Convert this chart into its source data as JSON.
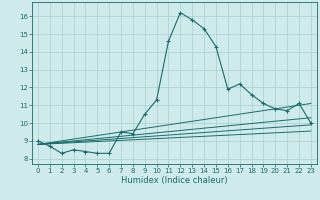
{
  "title": "",
  "xlabel": "Humidex (Indice chaleur)",
  "xlim": [
    -0.5,
    23.5
  ],
  "ylim": [
    7.7,
    16.8
  ],
  "yticks": [
    8,
    9,
    10,
    11,
    12,
    13,
    14,
    15,
    16
  ],
  "xticks": [
    0,
    1,
    2,
    3,
    4,
    5,
    6,
    7,
    8,
    9,
    10,
    11,
    12,
    13,
    14,
    15,
    16,
    17,
    18,
    19,
    20,
    21,
    22,
    23
  ],
  "bg_color": "#ceeaea",
  "grid_color": "#a8d0d0",
  "line_color": "#1a6b6b",
  "main_series": {
    "x": [
      0,
      1,
      2,
      3,
      4,
      5,
      6,
      7,
      8,
      9,
      10,
      11,
      12,
      13,
      14,
      15,
      16,
      17,
      18,
      19,
      20,
      21,
      22,
      23
    ],
    "y": [
      9.0,
      8.7,
      8.3,
      8.5,
      8.4,
      8.3,
      8.3,
      9.5,
      9.4,
      10.5,
      11.3,
      14.6,
      16.2,
      15.8,
      15.3,
      14.3,
      11.9,
      12.2,
      11.6,
      11.1,
      10.8,
      10.7,
      11.1,
      10.0
    ]
  },
  "trend_lines": [
    {
      "x": [
        0,
        23
      ],
      "y": [
        8.8,
        11.1
      ],
      "ls": "-"
    },
    {
      "x": [
        0,
        23
      ],
      "y": [
        8.8,
        10.3
      ],
      "ls": "-"
    },
    {
      "x": [
        0,
        23
      ],
      "y": [
        8.8,
        9.9
      ],
      "ls": "-"
    },
    {
      "x": [
        0,
        23
      ],
      "y": [
        8.8,
        9.55
      ],
      "ls": "-"
    }
  ]
}
